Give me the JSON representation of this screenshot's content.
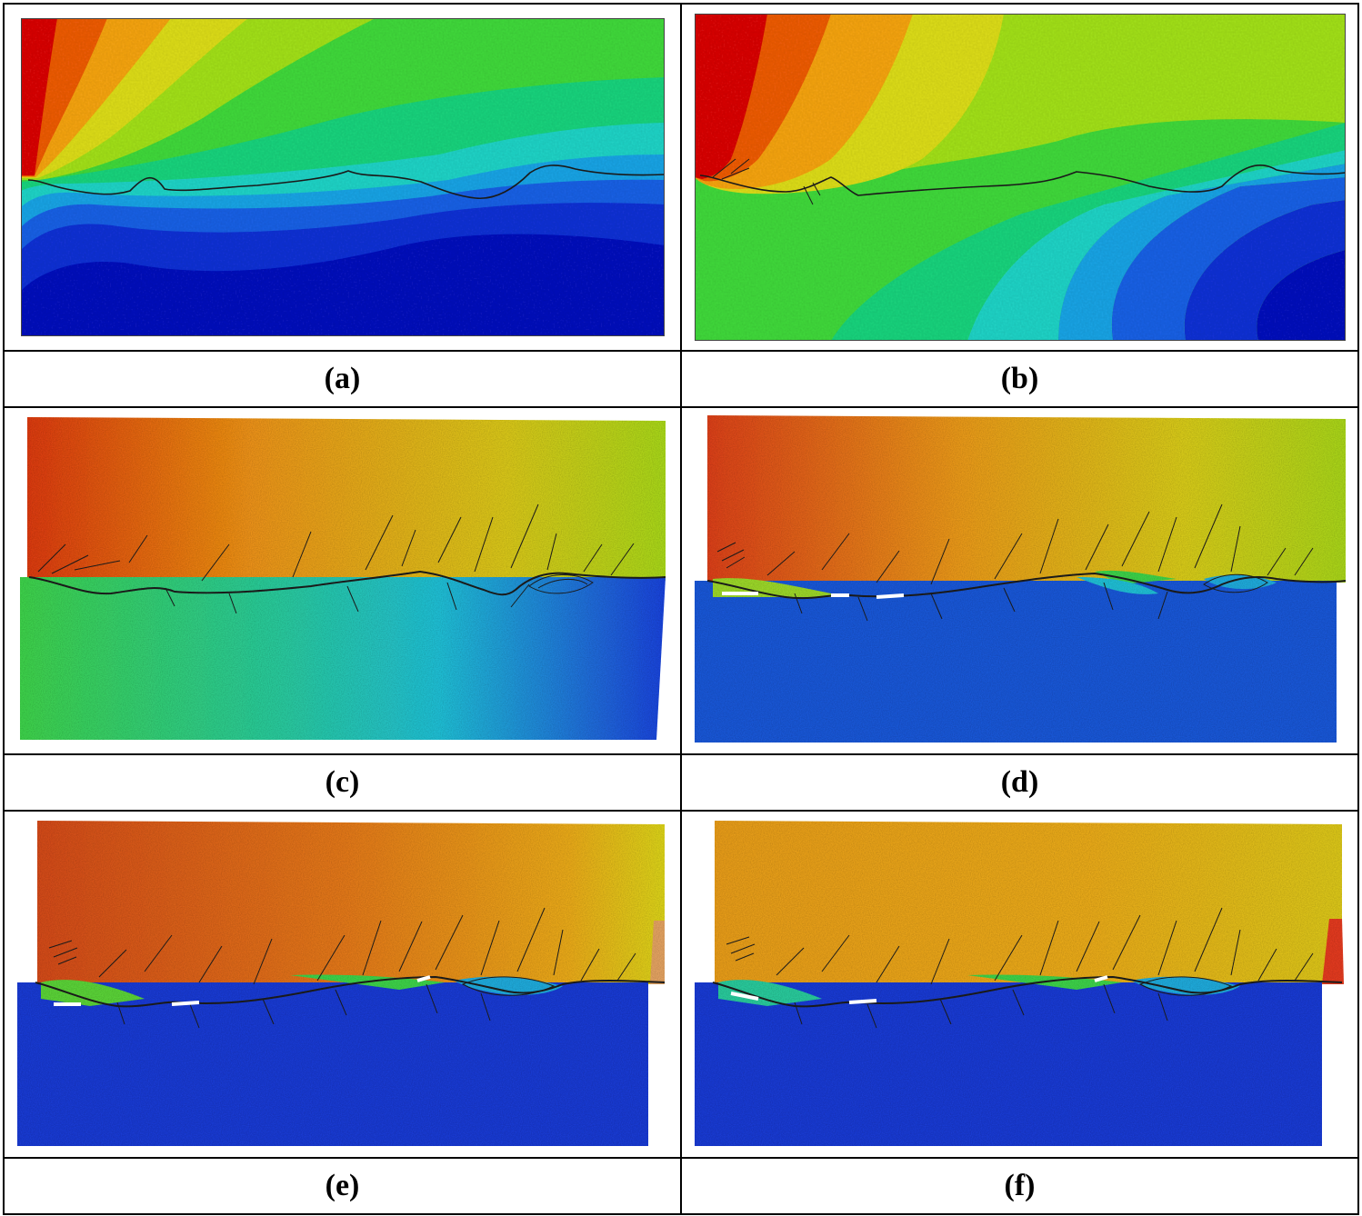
{
  "panels": [
    {
      "id": "a",
      "label": "(a)"
    },
    {
      "id": "b",
      "label": "(b)"
    },
    {
      "id": "c",
      "label": "(c)"
    },
    {
      "id": "d",
      "label": "(d)"
    },
    {
      "id": "e",
      "label": "(e)"
    },
    {
      "id": "f",
      "label": "(f)"
    }
  ],
  "contour_palette": [
    "#d40f0f",
    "#e85a10",
    "#f0a018",
    "#d8d81a",
    "#9fdc1c",
    "#3fd43a",
    "#1fcf7a",
    "#22cfc2",
    "#1ea0e0",
    "#1e5fe0",
    "#1530d0",
    "#0f14b8"
  ],
  "crack_color": "#1a1a1a"
}
